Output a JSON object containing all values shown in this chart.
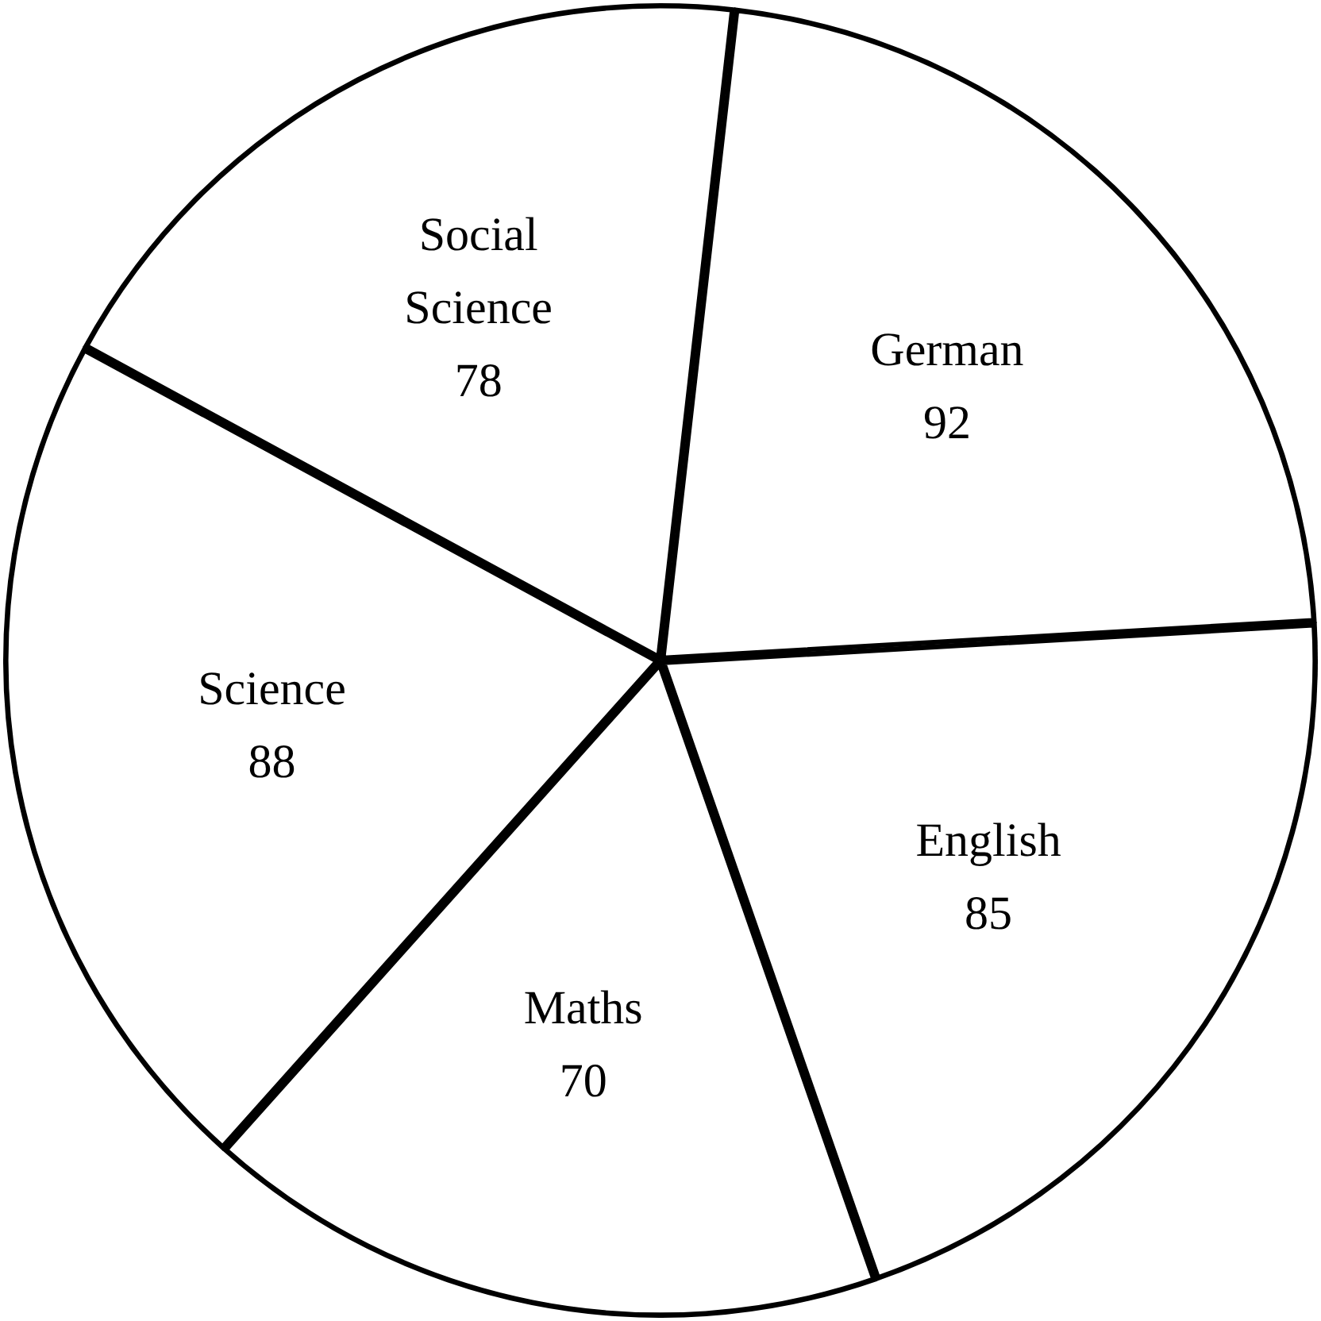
{
  "chart_data": {
    "type": "pie",
    "categories": [
      "German",
      "English",
      "Maths",
      "Science",
      "Social Science"
    ],
    "values": [
      92,
      85,
      70,
      88,
      78
    ],
    "colors": [
      "#ffffff",
      "#ffffff",
      "#ffffff",
      "#ffffff",
      "#ffffff"
    ],
    "data_labels": true,
    "legend": false
  }
}
